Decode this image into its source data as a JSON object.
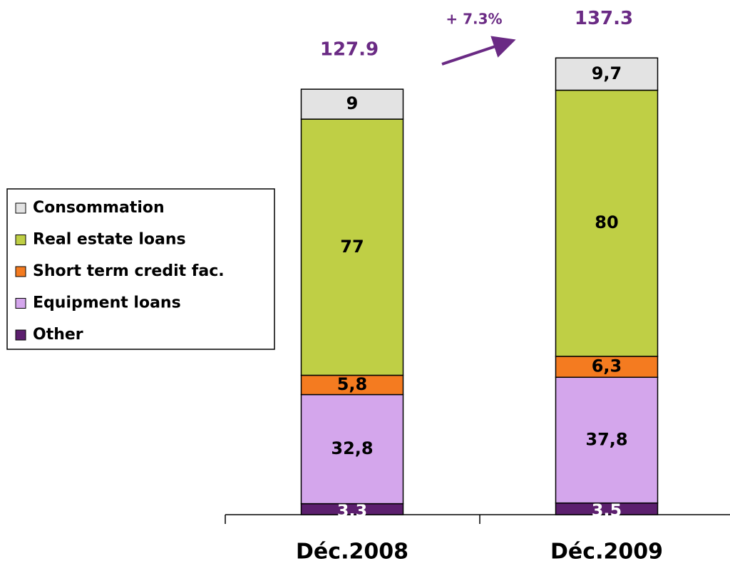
{
  "chart_data": {
    "type": "stacked_bar",
    "categories": [
      "Déc.2008",
      "Déc.2009"
    ],
    "series": [
      {
        "name": "Other",
        "color": "#5c1f6e",
        "values": [
          3.3,
          3.5
        ],
        "value_labels": [
          "3,3",
          "3,5"
        ]
      },
      {
        "name": "Equipment loans",
        "color": "#d4a6ec",
        "values": [
          32.8,
          37.8
        ],
        "value_labels": [
          "32,8",
          "37,8"
        ]
      },
      {
        "name": "Short term credit fac.",
        "color": "#f47b20",
        "values": [
          5.8,
          6.3
        ],
        "value_labels": [
          "5,8",
          "6,3"
        ]
      },
      {
        "name": "Real estate loans",
        "color": "#bfcf45",
        "values": [
          77,
          80
        ],
        "value_labels": [
          "77",
          "80"
        ]
      },
      {
        "name": "Consommation",
        "color": "#e3e3e3",
        "values": [
          9,
          9.7
        ],
        "value_labels": [
          "9",
          "9,7"
        ]
      }
    ],
    "totals": [
      127.9,
      137.3
    ],
    "annotation": "+ 7.3%",
    "ylim": [
      0,
      150
    ],
    "legend": "left"
  }
}
